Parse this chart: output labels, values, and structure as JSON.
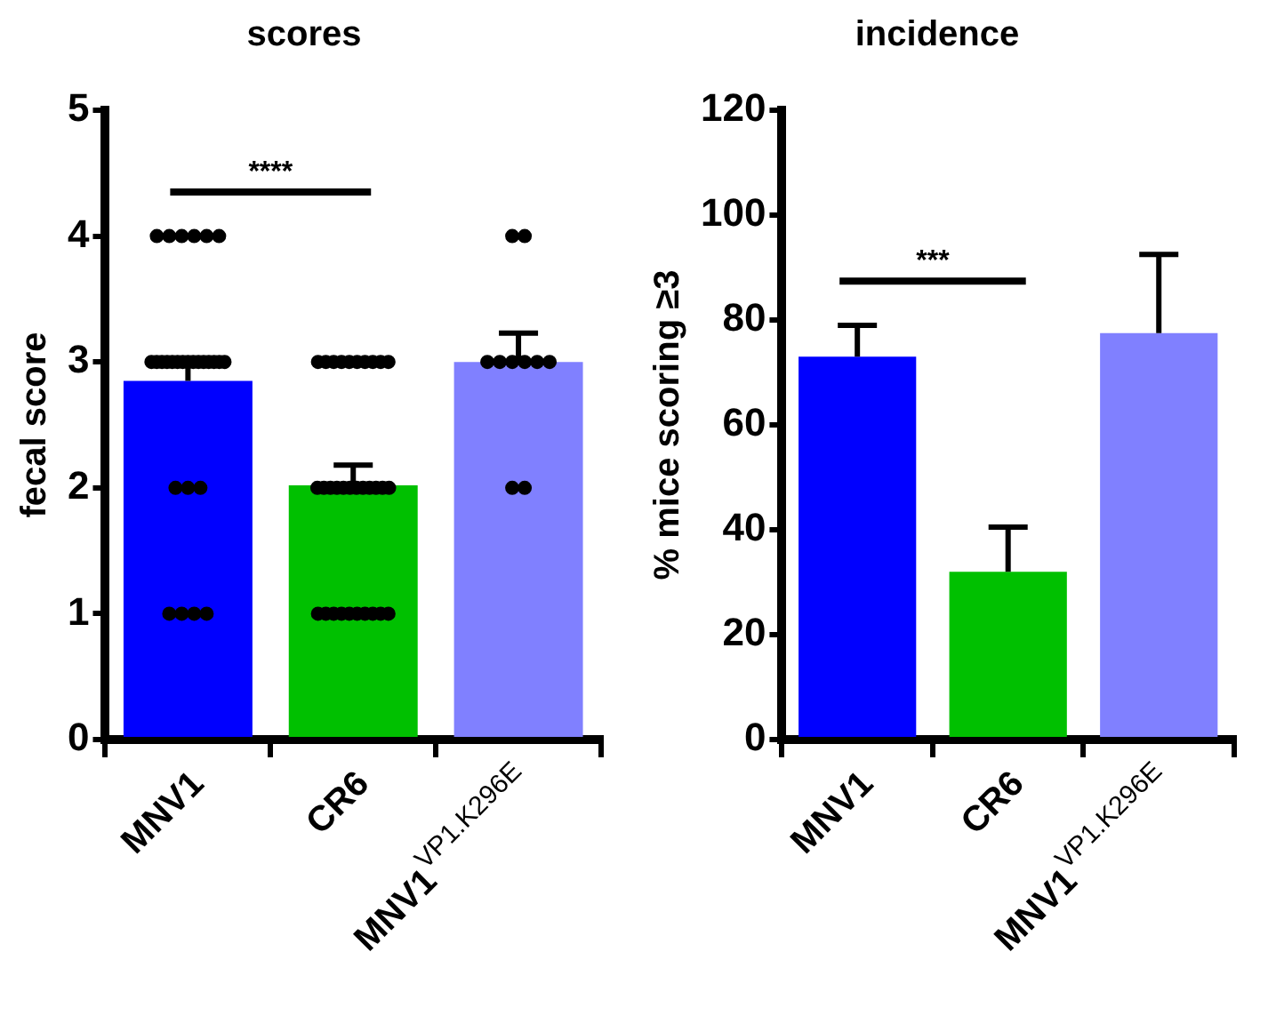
{
  "chart_data": [
    {
      "type": "bar",
      "title": "scores",
      "ylabel": "fecal score",
      "categories": [
        "MNV1",
        "CR6",
        "MNV1$^{VP1.K296E}$"
      ],
      "ylim": [
        0,
        5
      ],
      "yticks": [
        0,
        1,
        2,
        3,
        4,
        5
      ],
      "annotations": [
        "****"
      ],
      "series": [
        {
          "colors": [
            "#0000ff",
            "#00c000",
            "#8080ff"
          ],
          "values": [
            2.85,
            2.02,
            3.0
          ],
          "errors": [
            [
              2.85,
              2.98
            ],
            [
              2.02,
              2.18
            ],
            [
              3.0,
              3.23
            ]
          ]
        },
        {
          "type": "scatter",
          "color": "#000000",
          "marker": "circle",
          "x": [
            "MNV1",
            "MNV1",
            "MNV1",
            "MNV1",
            "MNV1",
            "MNV1",
            "MNV1",
            "MNV1",
            "MNV1",
            "MNV1",
            "MNV1",
            "MNV1",
            "MNV1",
            "MNV1",
            "MNV1",
            "MNV1",
            "MNV1",
            "MNV1",
            "MNV1",
            "MNV1",
            "MNV1",
            "MNV1",
            "MNV1",
            "MNV1",
            "MNV1",
            "MNV1",
            "MNV1",
            "MNV1",
            "CR6",
            "CR6",
            "CR6",
            "CR6",
            "CR6",
            "CR6",
            "CR6",
            "CR6",
            "CR6",
            "CR6",
            "CR6",
            "CR6",
            "CR6",
            "CR6",
            "CR6",
            "CR6",
            "CR6",
            "CR6",
            "CR6",
            "CR6",
            "CR6",
            "CR6",
            "CR6",
            "CR6",
            "CR6",
            "CR6",
            "CR6",
            "CR6",
            "CR6",
            "CR6",
            "CR6",
            "CR6",
            "MNV1$^{VP1.K296E}$",
            "MNV1$^{VP1.K296E}$",
            "MNV1$^{VP1.K296E}$",
            "MNV1$^{VP1.K296E}$",
            "MNV1$^{VP1.K296E}$",
            "MNV1$^{VP1.K296E}$",
            "MNV1$^{VP1.K296E}$",
            "MNV1$^{VP1.K296E}$",
            "MNV1$^{VP1.K296E}$",
            "MNV1$^{VP1.K296E}$"
          ],
          "values": [
            4,
            4,
            4,
            4,
            4,
            4,
            3,
            3,
            3,
            3,
            3,
            3,
            3,
            3,
            3,
            3,
            3,
            3,
            3,
            3,
            3,
            2,
            2,
            2,
            1,
            1,
            1,
            1,
            3,
            3,
            3,
            3,
            3,
            3,
            3,
            3,
            3,
            3,
            2,
            2,
            2,
            2,
            2,
            2,
            2,
            2,
            2,
            2,
            2,
            2,
            1,
            1,
            1,
            1,
            1,
            1,
            1,
            1,
            1,
            1,
            4,
            4,
            3,
            3,
            3,
            3,
            3,
            3,
            2,
            2
          ]
        }
      ]
    },
    {
      "type": "bar",
      "title": "incidence",
      "ylabel": "% mice scoring ≥3",
      "categories": [
        "MNV1",
        "CR6",
        "MNV1$^{VP1.K296E}$"
      ],
      "ylim": [
        0,
        120
      ],
      "yticks": [
        0,
        20,
        40,
        60,
        80,
        100,
        120
      ],
      "annotations": [
        "***"
      ],
      "series": [
        {
          "colors": [
            "#0000ff",
            "#00c000",
            "#8080ff"
          ],
          "values": [
            73,
            32,
            77.5
          ],
          "errors": [
            [
              73,
              79
            ],
            [
              32,
              40.5
            ],
            [
              77.5,
              92.5
            ]
          ]
        }
      ]
    }
  ]
}
